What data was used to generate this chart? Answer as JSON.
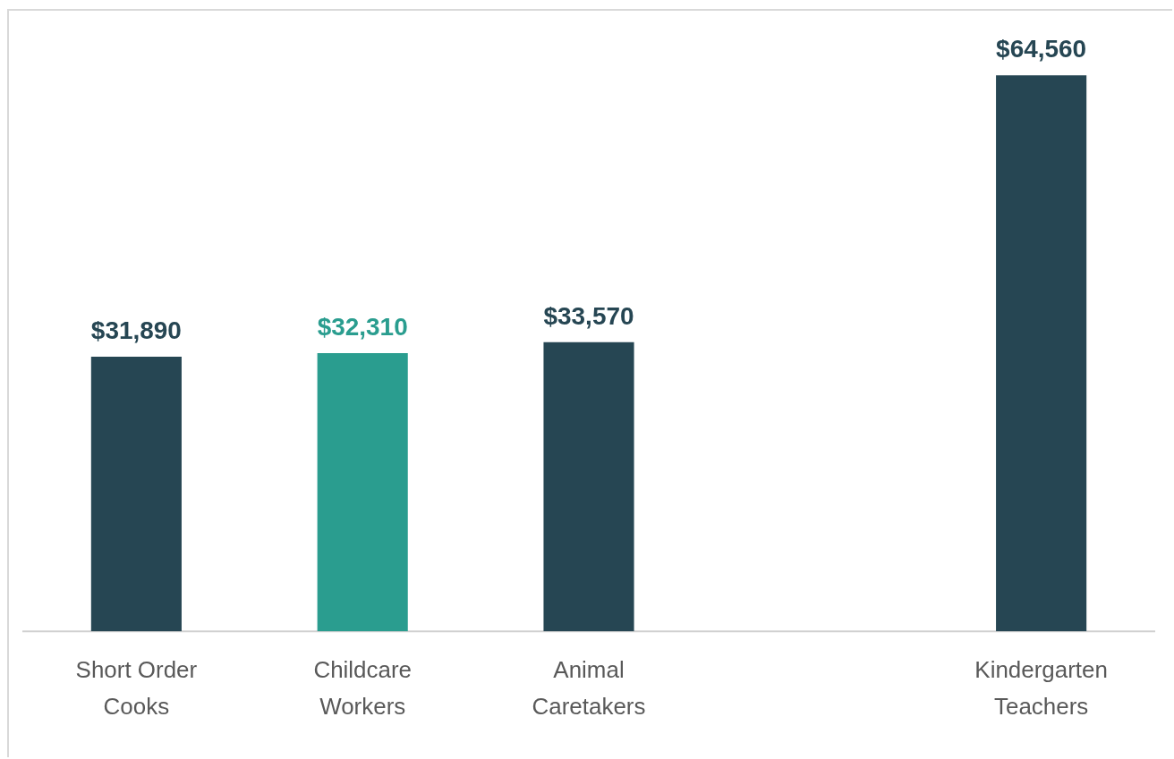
{
  "chart_data": {
    "type": "bar",
    "categories": [
      "Short Order Cooks",
      "Childcare Workers",
      "Animal Caretakers",
      null,
      "Kindergarten Teachers"
    ],
    "values": [
      31890,
      32310,
      33570,
      null,
      64560
    ],
    "colors": [
      "#264653",
      "#2a9d8f",
      "#264653",
      "#264653",
      "#264653"
    ],
    "value_labels": [
      "$31,890",
      "$32,310",
      "$33,570",
      null,
      "$64,560"
    ],
    "grid": false,
    "legend": false
  }
}
